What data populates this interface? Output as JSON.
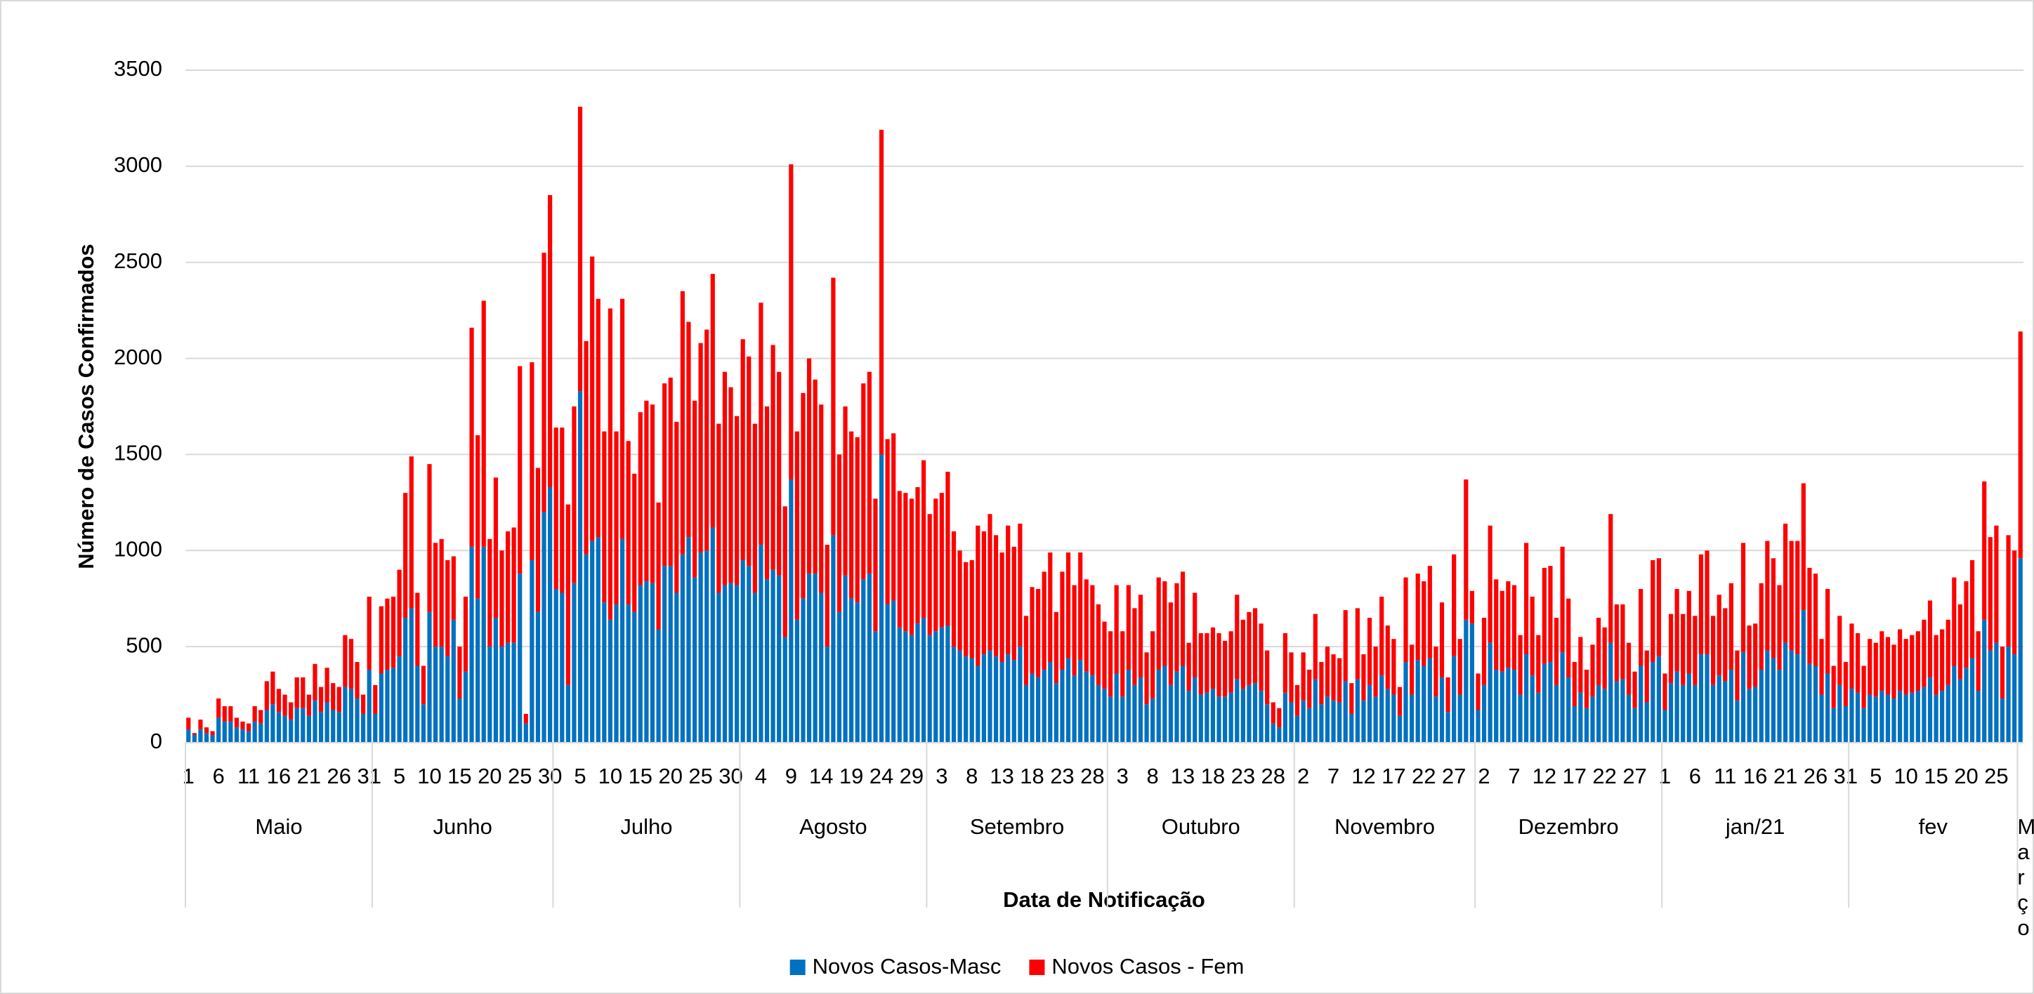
{
  "chart_data": {
    "type": "stacked_bar",
    "x_label": "Data de Notificação",
    "y_label": "Número de Casos Confirmados",
    "ylim": [
      0,
      3500
    ],
    "yticks": [
      0,
      500,
      1000,
      1500,
      2000,
      2500,
      3000,
      3500
    ],
    "grid": true,
    "legend": "bottom",
    "months": [
      "Maio",
      "Junho",
      "Julho",
      "Agosto",
      "Setembro",
      "Outubro",
      "Novembro",
      "Dezembro",
      "jan/21",
      "fev",
      "Março"
    ],
    "categories": [
      "1",
      null,
      null,
      null,
      null,
      "6",
      null,
      null,
      null,
      null,
      "11",
      null,
      null,
      null,
      null,
      "16",
      null,
      null,
      null,
      null,
      "21",
      null,
      null,
      null,
      null,
      "26",
      null,
      null,
      null,
      null,
      "31",
      null,
      null,
      null,
      null,
      "5",
      null,
      null,
      null,
      null,
      "10",
      null,
      null,
      null,
      null,
      "15",
      null,
      null,
      null,
      null,
      "20",
      null,
      null,
      null,
      null,
      "25",
      null,
      null,
      null,
      null,
      "30",
      null,
      null,
      null,
      null,
      "5",
      null,
      null,
      null,
      null,
      "10",
      null,
      null,
      null,
      null,
      "15",
      null,
      null,
      null,
      null,
      "20",
      null,
      null,
      null,
      null,
      "25",
      null,
      null,
      null,
      null,
      "30",
      null,
      null,
      null,
      null,
      "4",
      null,
      null,
      null,
      null,
      "9",
      null,
      null,
      null,
      null,
      "14",
      null,
      null,
      null,
      null,
      "19",
      null,
      null,
      null,
      null,
      "24",
      null,
      null,
      null,
      null,
      "29",
      null,
      null,
      null,
      null,
      "3",
      null,
      null,
      null,
      null,
      "8",
      null,
      null,
      null,
      null,
      "13",
      null,
      null,
      null,
      null,
      "18",
      null,
      null,
      null,
      null,
      "23",
      null,
      null,
      null,
      null,
      "28",
      null,
      null,
      null,
      null,
      "3",
      null,
      null,
      null,
      null,
      "8",
      null,
      null,
      null,
      null,
      "13",
      null,
      null,
      null,
      null,
      "18",
      null,
      null,
      null,
      null,
      "23",
      null,
      null,
      null,
      null,
      "28",
      null,
      null,
      null,
      null,
      "2",
      null,
      null,
      null,
      null,
      "7",
      null,
      null,
      null,
      null,
      "12",
      null,
      null,
      null,
      null,
      "17",
      null,
      null,
      null,
      null,
      "22",
      null,
      null,
      null,
      null,
      "27",
      null,
      null,
      null,
      null,
      "2",
      null,
      null,
      null,
      null,
      "7",
      null,
      null,
      null,
      null,
      "12",
      null,
      null,
      null,
      null,
      "17",
      null,
      null,
      null,
      null,
      "22",
      null,
      null,
      null,
      null,
      "27",
      null,
      null,
      null,
      null,
      "1",
      null,
      null,
      null,
      null,
      "6",
      null,
      null,
      null,
      null,
      "11",
      null,
      null,
      null,
      null,
      "16",
      null,
      null,
      null,
      null,
      "21",
      null,
      null,
      null,
      null,
      "26",
      null,
      null,
      null,
      null,
      "31",
      null,
      null,
      null,
      null,
      "5",
      null,
      null,
      null,
      null,
      "10",
      null,
      null,
      null,
      null,
      "15",
      null,
      null,
      null,
      null,
      "20",
      null,
      null,
      null,
      null,
      "25",
      null,
      null,
      null,
      null
    ],
    "series": [
      {
        "name": "Novos Casos-Masc",
        "color": "#0070C0",
        "values": [
          70,
          40,
          70,
          50,
          40,
          130,
          110,
          110,
          80,
          70,
          60,
          110,
          100,
          170,
          200,
          160,
          140,
          120,
          180,
          180,
          140,
          220,
          160,
          210,
          170,
          160,
          290,
          280,
          230,
          150,
          380,
          150,
          360,
          380,
          390,
          450,
          650,
          700,
          400,
          200,
          680,
          500,
          500,
          450,
          640,
          230,
          370,
          1020,
          750,
          1020,
          500,
          650,
          500,
          520,
          520,
          880,
          100,
          950,
          680,
          1200,
          1330,
          800,
          780,
          300,
          830,
          1830,
          980,
          1050,
          1070,
          730,
          640,
          720,
          1060,
          720,
          680,
          820,
          840,
          830,
          590,
          920,
          920,
          780,
          980,
          1070,
          860,
          990,
          1000,
          1120,
          780,
          820,
          830,
          820,
          950,
          920,
          780,
          1030,
          850,
          900,
          870,
          550,
          1370,
          640,
          750,
          880,
          880,
          780,
          500,
          1080,
          680,
          870,
          750,
          730,
          850,
          880,
          580,
          1500,
          720,
          740,
          600,
          580,
          560,
          620,
          650,
          560,
          580,
          600,
          610,
          500,
          480,
          450,
          440,
          400,
          460,
          480,
          450,
          420,
          460,
          430,
          500,
          300,
          360,
          340,
          380,
          420,
          310,
          380,
          440,
          350,
          430,
          370,
          350,
          300,
          280,
          240,
          360,
          240,
          380,
          300,
          340,
          200,
          230,
          380,
          400,
          300,
          370,
          400,
          270,
          340,
          250,
          260,
          280,
          240,
          240,
          260,
          330,
          280,
          300,
          310,
          270,
          200,
          100,
          80,
          260,
          210,
          140,
          220,
          180,
          330,
          200,
          240,
          220,
          210,
          320,
          150,
          330,
          220,
          300,
          240,
          350,
          280,
          250,
          140,
          420,
          250,
          430,
          400,
          440,
          240,
          340,
          160,
          450,
          250,
          640,
          620,
          170,
          300,
          520,
          380,
          370,
          390,
          380,
          250,
          460,
          350,
          260,
          410,
          420,
          300,
          470,
          340,
          190,
          260,
          180,
          240,
          300,
          280,
          520,
          320,
          330,
          250,
          180,
          400,
          210,
          420,
          450,
          170,
          310,
          370,
          300,
          360,
          300,
          460,
          460,
          300,
          350,
          320,
          380,
          220,
          470,
          280,
          290,
          380,
          480,
          440,
          380,
          520,
          480,
          460,
          690,
          410,
          400,
          250,
          360,
          180,
          300,
          190,
          280,
          260,
          180,
          250,
          240,
          270,
          250,
          230,
          270,
          250,
          260,
          270,
          290,
          340,
          250,
          270,
          300,
          400,
          330,
          390,
          440,
          270,
          640,
          480,
          520,
          230,
          500,
          460,
          960
        ]
      },
      {
        "name": "Novos Casos - Fem",
        "color": "#FF0000",
        "values": [
          60,
          10,
          50,
          30,
          20,
          100,
          80,
          80,
          50,
          40,
          40,
          80,
          70,
          150,
          170,
          120,
          110,
          90,
          160,
          160,
          110,
          190,
          130,
          180,
          140,
          130,
          270,
          260,
          190,
          100,
          380,
          150,
          350,
          370,
          370,
          450,
          650,
          790,
          380,
          200,
          770,
          540,
          560,
          500,
          330,
          270,
          390,
          1140,
          850,
          1280,
          560,
          730,
          500,
          580,
          600,
          1080,
          50,
          1030,
          750,
          1350,
          1520,
          840,
          860,
          940,
          920,
          1480,
          1110,
          1480,
          1240,
          890,
          1620,
          900,
          1250,
          850,
          720,
          900,
          940,
          930,
          660,
          950,
          980,
          890,
          1370,
          1120,
          920,
          1090,
          1150,
          1320,
          880,
          1110,
          1020,
          880,
          1150,
          1090,
          880,
          1260,
          900,
          1170,
          1060,
          680,
          1640,
          980,
          1070,
          1120,
          1010,
          980,
          530,
          1340,
          820,
          880,
          870,
          860,
          1020,
          1050,
          690,
          1690,
          860,
          870,
          710,
          720,
          710,
          710,
          820,
          630,
          690,
          700,
          800,
          600,
          520,
          490,
          510,
          730,
          640,
          710,
          630,
          570,
          670,
          590,
          640,
          360,
          450,
          460,
          510,
          570,
          370,
          510,
          550,
          470,
          560,
          480,
          470,
          420,
          350,
          340,
          460,
          340,
          440,
          400,
          430,
          270,
          350,
          480,
          440,
          430,
          460,
          490,
          250,
          440,
          320,
          310,
          320,
          330,
          290,
          320,
          440,
          360,
          380,
          390,
          350,
          280,
          110,
          100,
          310,
          260,
          160,
          250,
          200,
          340,
          220,
          260,
          240,
          230,
          370,
          160,
          370,
          240,
          350,
          260,
          410,
          330,
          290,
          150,
          440,
          260,
          450,
          440,
          480,
          260,
          390,
          180,
          530,
          290,
          730,
          170,
          190,
          350,
          610,
          470,
          420,
          450,
          440,
          310,
          580,
          410,
          300,
          500,
          500,
          350,
          550,
          410,
          230,
          290,
          200,
          270,
          350,
          320,
          670,
          400,
          390,
          270,
          190,
          400,
          270,
          530,
          510,
          190,
          360,
          430,
          370,
          430,
          360,
          520,
          540,
          360,
          420,
          380,
          450,
          260,
          570,
          330,
          330,
          450,
          570,
          520,
          440,
          620,
          570,
          590,
          660,
          500,
          480,
          290,
          440,
          220,
          360,
          230,
          340,
          310,
          220,
          290,
          280,
          310,
          300,
          280,
          320,
          290,
          300,
          310,
          350,
          400,
          310,
          320,
          340,
          460,
          390,
          450,
          510,
          310,
          720,
          590,
          610,
          270,
          580,
          540,
          1180
        ]
      }
    ]
  }
}
